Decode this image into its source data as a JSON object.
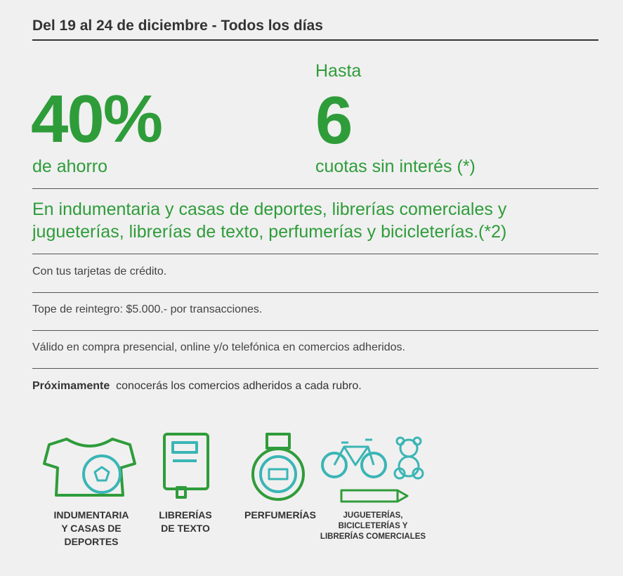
{
  "header": {
    "title": "Del 19 al 24 de diciembre - Todos los días"
  },
  "highlights": [
    {
      "value": "40%",
      "caption": "de ahorro"
    },
    {
      "prefix": "Hasta",
      "value": "6",
      "caption": "cuotas sin interés (*)"
    }
  ],
  "description": [
    "En indumentaria y casas de deportes, librerías comerciales y",
    "jugueterías, librerías de texto, perfumerías y bicicleterías.(*2)"
  ],
  "details": [
    "Con tus tarjetas de crédito.",
    "Tope de reintegro: $5.000.- por transacciones.",
    "Válido en compra presencial, online y/o telefónica en comercios adheridos."
  ],
  "note": {
    "bold": "Próximamente",
    "text": "conocerás los comercios adheridos a cada rubro."
  },
  "categories": [
    {
      "label": [
        "INDUMENTARIA",
        "Y CASAS DE",
        "DEPORTES"
      ]
    },
    {
      "label": [
        "LIBRERÍAS",
        "DE TEXTO"
      ]
    },
    {
      "label": [
        "PERFUMERÍAS"
      ]
    },
    {
      "label": [
        "JUGUETERÍAS,",
        "BICICLETERÍAS Y",
        "LIBRERÍAS COMERCIALES"
      ]
    }
  ]
}
